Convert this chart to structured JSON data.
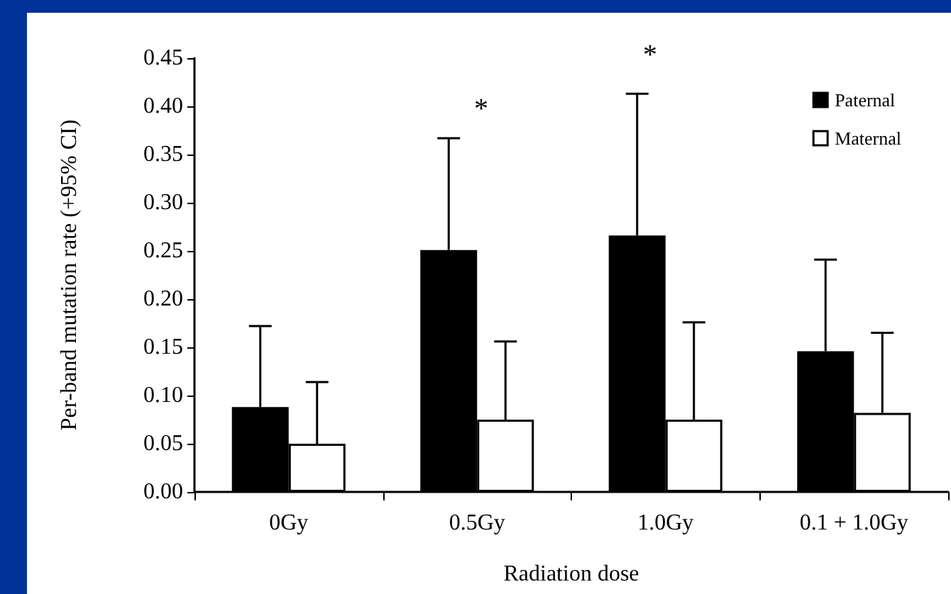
{
  "chart_data": {
    "type": "bar",
    "xlabel": "Radiation dose",
    "ylabel": "Per-band mutation rate (+95% CI)",
    "categories": [
      "0Gy",
      "0.5Gy",
      "1.0Gy",
      "0.1 + 1.0Gy"
    ],
    "series": [
      {
        "name": "Paternal",
        "color": "#000000",
        "values": [
          0.088,
          0.251,
          0.266,
          0.146
        ],
        "errors": [
          [
            0.088,
            0.172
          ],
          [
            0.251,
            0.367
          ],
          [
            0.266,
            0.413
          ],
          [
            0.146,
            0.241
          ]
        ]
      },
      {
        "name": "Maternal",
        "color": "#ffffff",
        "values": [
          0.05,
          0.075,
          0.075,
          0.082
        ],
        "errors": [
          [
            0.05,
            0.114
          ],
          [
            0.075,
            0.156
          ],
          [
            0.075,
            0.176
          ],
          [
            0.082,
            0.165
          ]
        ]
      }
    ],
    "ylim": [
      0,
      0.45
    ],
    "yticks": [
      {
        "value": 0,
        "label": "0.00"
      },
      {
        "value": 0.05,
        "label": "0.05"
      },
      {
        "value": 0.1,
        "label": "0.10"
      },
      {
        "value": 0.15,
        "label": "0.15"
      },
      {
        "value": 0.2,
        "label": "0.20"
      },
      {
        "value": 0.25,
        "label": "0.25"
      },
      {
        "value": 0.3,
        "label": "0.30"
      },
      {
        "value": 0.35,
        "label": "0.35"
      },
      {
        "value": 0.4,
        "label": "0.40"
      },
      {
        "value": 0.45,
        "label": "0.45"
      }
    ],
    "annotations": [
      "*",
      "*"
    ],
    "grid": false,
    "legend": "top right"
  }
}
